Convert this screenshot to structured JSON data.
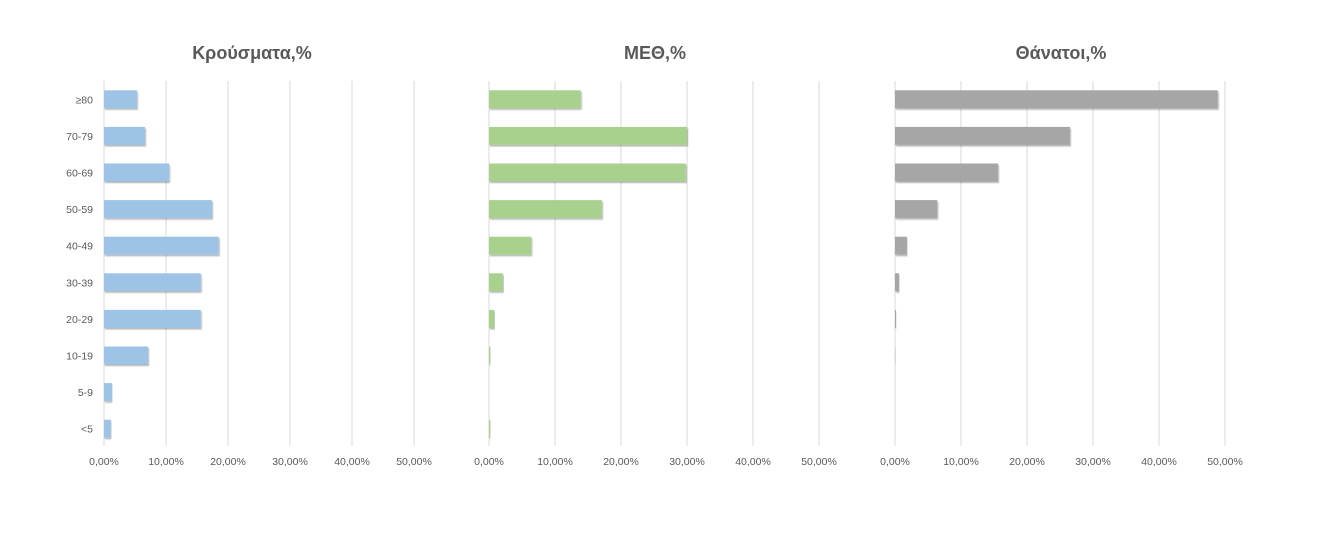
{
  "chart_data": [
    {
      "type": "bar",
      "orientation": "horizontal",
      "title": "Κρούσματα,%",
      "categories": [
        "≥80",
        "70-79",
        "60-69",
        "50-59",
        "40-49",
        "30-39",
        "20-29",
        "10-19",
        "5-9",
        "<5"
      ],
      "values": [
        5.3,
        6.6,
        10.5,
        17.4,
        18.5,
        15.6,
        15.6,
        7.1,
        1.3,
        1.1
      ],
      "xlim": [
        0,
        50
      ],
      "xticks": [
        "0,00%",
        "10,00%",
        "20,00%",
        "30,00%",
        "40,00%",
        "50,00%"
      ],
      "grid": true,
      "color": "#9dc3e6"
    },
    {
      "type": "bar",
      "orientation": "horizontal",
      "title": "ΜΕΘ,%",
      "categories": [
        "≥80",
        "70-79",
        "60-69",
        "50-59",
        "40-49",
        "30-39",
        "20-29",
        "10-19",
        "5-9",
        "<5"
      ],
      "values": [
        13.9,
        30.0,
        29.8,
        17.1,
        6.4,
        2.1,
        0.8,
        0.2,
        0.0,
        0.2
      ],
      "xlim": [
        0,
        50
      ],
      "xticks": [
        "0,00%",
        "10,00%",
        "20,00%",
        "30,00%",
        "40,00%",
        "50,00%"
      ],
      "grid": true,
      "color": "#a9d18e"
    },
    {
      "type": "bar",
      "orientation": "horizontal",
      "title": "Θάνατοι,%",
      "categories": [
        "≥80",
        "70-79",
        "60-69",
        "50-59",
        "40-49",
        "30-39",
        "20-29",
        "10-19",
        "5-9",
        "<5"
      ],
      "values": [
        48.9,
        26.5,
        15.6,
        6.4,
        1.8,
        0.6,
        0.15,
        0.05,
        0.0,
        0.0
      ],
      "xlim": [
        0,
        50
      ],
      "xticks": [
        "0,00%",
        "10,00%",
        "20,00%",
        "30,00%",
        "40,00%",
        "50,00%"
      ],
      "grid": true,
      "color": "#a6a6a6"
    }
  ]
}
